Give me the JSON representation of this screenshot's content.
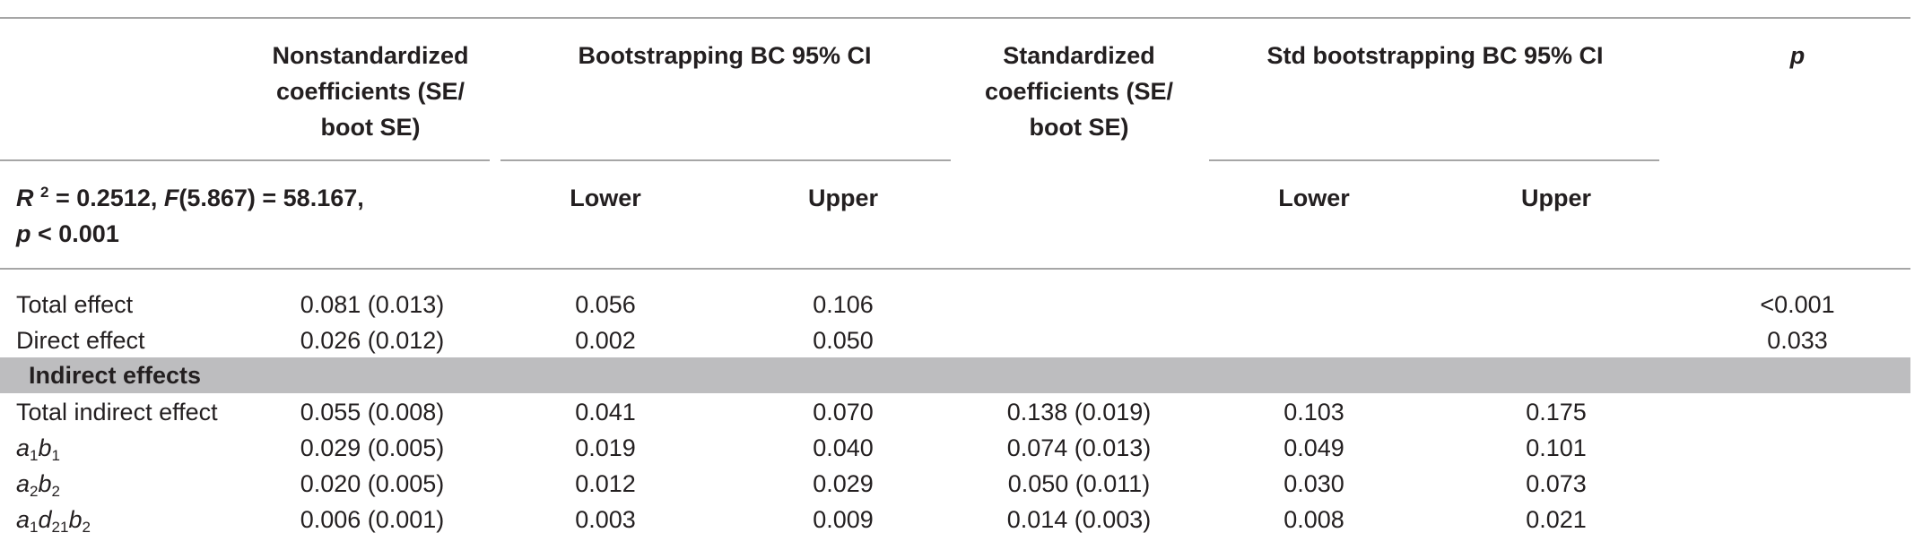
{
  "table": {
    "headers": {
      "nonstd": [
        "Nonstandardized",
        "coefficients (SE/",
        "boot SE)"
      ],
      "boot_ci": "Bootstrapping BC 95% CI",
      "std": [
        "Standardized",
        "coefficients (SE/",
        "boot SE)"
      ],
      "std_boot_ci": "Std bootstrapping BC 95% CI",
      "p": "p",
      "lower": "Lower",
      "upper": "Upper",
      "model_r": "R",
      "model_r_sup": "2",
      "model_eq1": " = 0.2512, ",
      "model_f": "F",
      "model_eq2": "(5.867) = 58.167,",
      "model_p": "p",
      "model_eq3": " < 0.001"
    },
    "rows": {
      "total": {
        "label": "Total effect",
        "coef": "0.081 (0.013)",
        "lower": "0.056",
        "upper": "0.106",
        "p": "<0.001"
      },
      "direct": {
        "label": "Direct effect",
        "coef": "0.026 (0.012)",
        "lower": "0.002",
        "upper": "0.050",
        "p": "0.033"
      },
      "section_label": "Indirect effects",
      "total_indirect": {
        "label": "Total indirect effect",
        "coef": "0.055 (0.008)",
        "lower": "0.041",
        "upper": "0.070",
        "std": "0.138 (0.019)",
        "std_lower": "0.103",
        "std_upper": "0.175"
      },
      "a1b1": {
        "a": "a",
        "a_sub": "1",
        "b": "b",
        "b_sub": "1",
        "coef": "0.029 (0.005)",
        "lower": "0.019",
        "upper": "0.040",
        "std": "0.074 (0.013)",
        "std_lower": "0.049",
        "std_upper": "0.101"
      },
      "a2b2": {
        "a": "a",
        "a_sub": "2",
        "b": "b",
        "b_sub": "2",
        "coef": "0.020 (0.005)",
        "lower": "0.012",
        "upper": "0.029",
        "std": "0.050 (0.011)",
        "std_lower": "0.030",
        "std_upper": "0.073"
      },
      "a1d21b2": {
        "a": "a",
        "a_sub": "1",
        "d": "d",
        "d_sub": "21",
        "b": "b",
        "b_sub": "2",
        "coef": "0.006 (0.001)",
        "lower": "0.003",
        "upper": "0.009",
        "std": "0.014 (0.003)",
        "std_lower": "0.008",
        "std_upper": "0.021"
      }
    }
  }
}
